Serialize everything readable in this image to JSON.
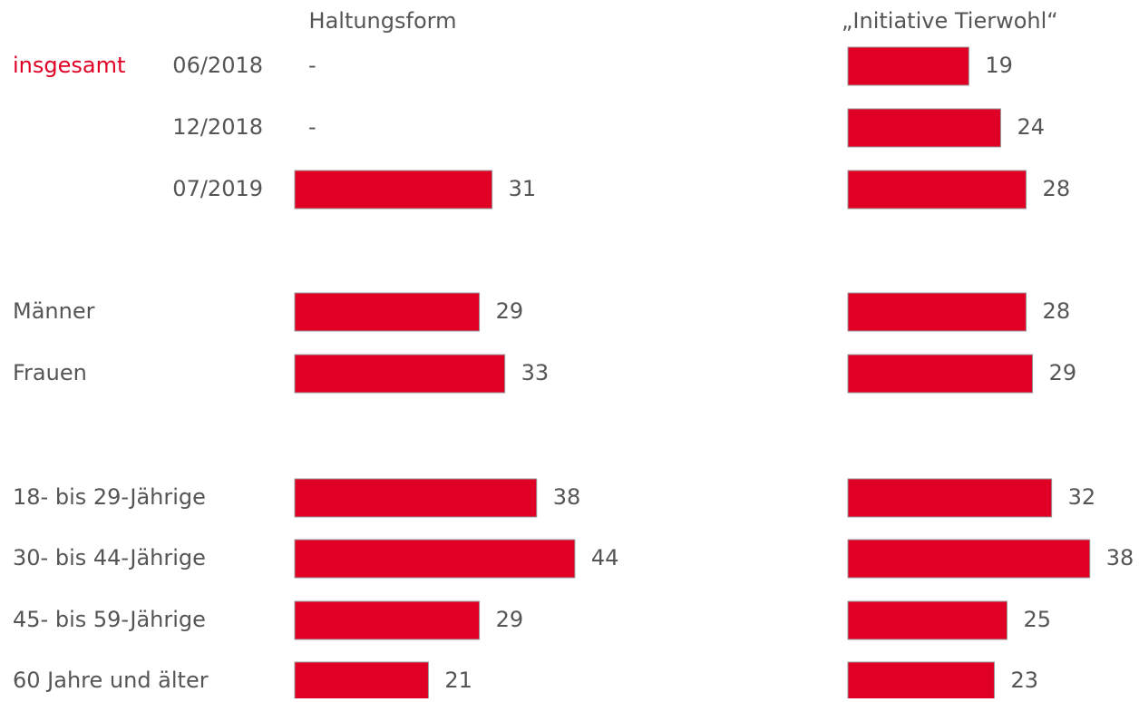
{
  "chart_data": {
    "type": "bar",
    "group_label": "insgesamt",
    "categories": [
      "06/2018",
      "12/2018",
      "07/2019",
      "Männer",
      "Frauen",
      "18- bis 29-Jährige",
      "30- bis 44-Jährige",
      "45- bis 59-Jährige",
      "60 Jahre und älter"
    ],
    "series": [
      {
        "name": "Haltungsform",
        "color": "#e00025",
        "values": [
          null,
          null,
          31,
          29,
          33,
          38,
          44,
          29,
          21
        ],
        "value_labels": [
          "-",
          "-",
          "31",
          "29",
          "33",
          "38",
          "44",
          "29",
          "21"
        ]
      },
      {
        "name": "„Initiative Tierwohl“",
        "color": "#e00025",
        "values": [
          19,
          24,
          28,
          28,
          29,
          32,
          38,
          25,
          23
        ]
      }
    ]
  }
}
